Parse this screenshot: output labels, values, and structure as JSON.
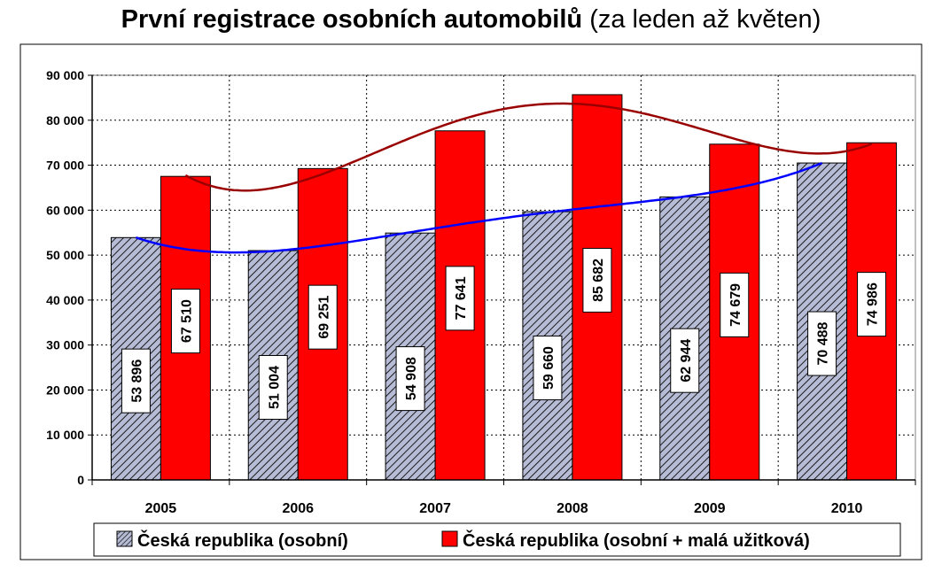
{
  "title_main": "První registrace osobních automobilů",
  "title_sub": "(za leden až květen)",
  "colors": {
    "series1_fill": "#b7bcd6",
    "series1_hatch": "#1a1a1a",
    "series2_fill": "#ff0000",
    "trend1": "#0000ff",
    "trend2": "#990000",
    "plot_bg": "#ffffff",
    "grid": "#000000"
  },
  "chart_data": {
    "type": "bar",
    "categories": [
      "2005",
      "2006",
      "2007",
      "2008",
      "2009",
      "2010"
    ],
    "series": [
      {
        "name": "Česká republika (osobní)",
        "values": [
          53896,
          51004,
          54908,
          59660,
          62944,
          70488
        ],
        "labels": [
          "53 896",
          "51 004",
          "54 908",
          "59 660",
          "62 944",
          "70 488"
        ],
        "style": "hatched",
        "trendline": "polynomial"
      },
      {
        "name": "Česká republika (osobní + malá užitková)",
        "values": [
          67510,
          69251,
          77641,
          85682,
          74679,
          74986
        ],
        "labels": [
          "67 510",
          "69 251",
          "77 641",
          "85 682",
          "74 679",
          "74 986"
        ],
        "style": "solid",
        "trendline": "polynomial"
      }
    ],
    "y_ticks": [
      "0",
      "10 000",
      "20 000",
      "30 000",
      "40 000",
      "50 000",
      "60 000",
      "70 000",
      "80 000",
      "90 000"
    ],
    "ylim": [
      0,
      90000
    ],
    "y_step": 10000,
    "grid": true,
    "legend": "bottom",
    "xlabel": "",
    "ylabel": ""
  }
}
